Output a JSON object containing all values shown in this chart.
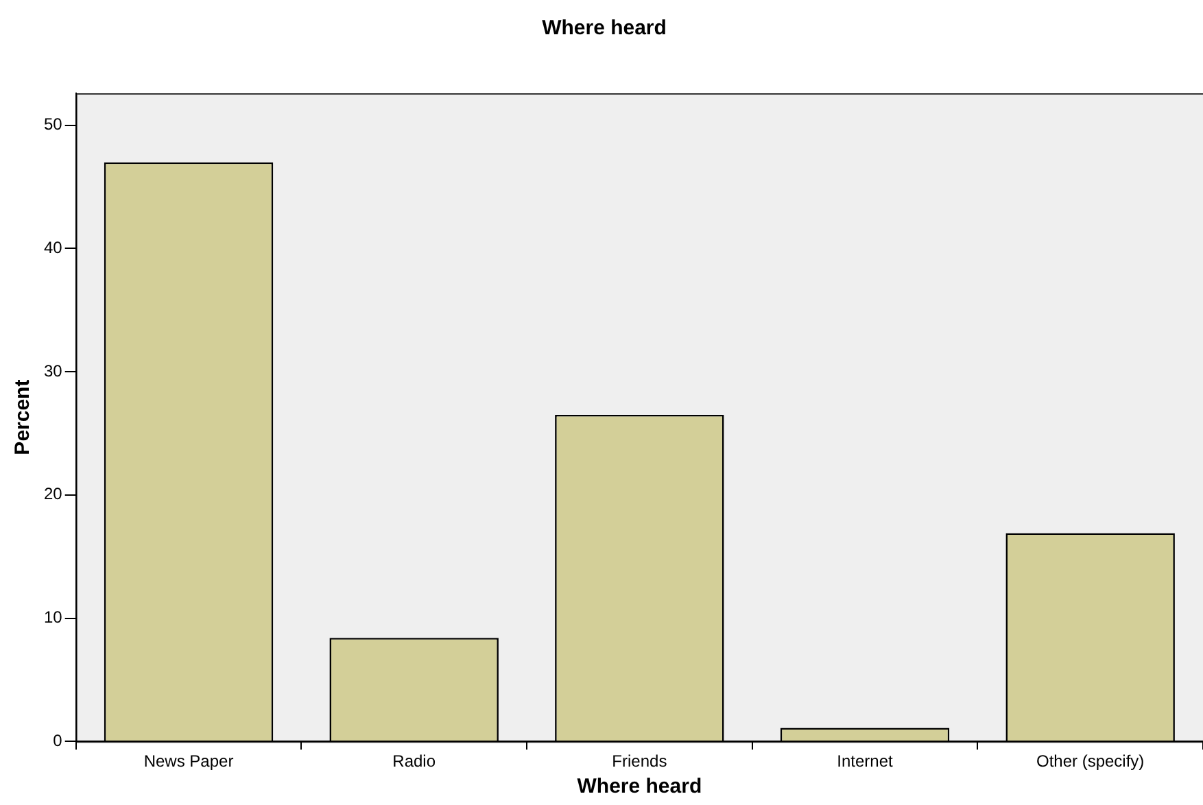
{
  "chart_data": {
    "type": "bar",
    "title": "Where heard",
    "xlabel": "Where heard",
    "ylabel": "Percent",
    "categories": [
      "News Paper",
      "Radio",
      "Friends",
      "Internet",
      "Other (specify)"
    ],
    "values": [
      47.0,
      8.4,
      26.5,
      1.1,
      16.9
    ],
    "color": "#d3cf98",
    "ylim": [
      0,
      52.6
    ],
    "yticks": [
      0,
      10,
      20,
      30,
      40,
      50
    ],
    "grid": false,
    "legend": false
  }
}
